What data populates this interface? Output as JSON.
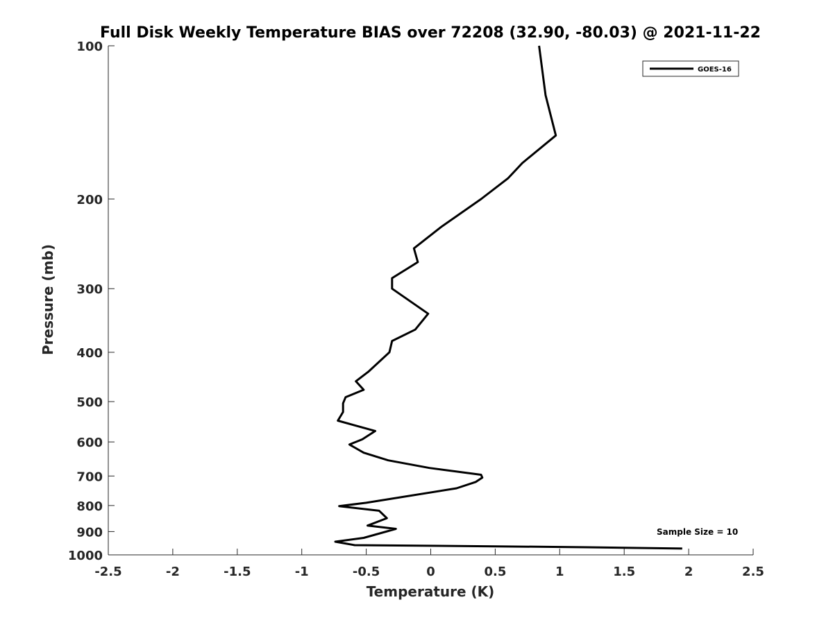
{
  "chart_data": {
    "type": "line",
    "title": "Full Disk Weekly Temperature BIAS over 72208 (32.90, -80.03) @ 2021-11-22",
    "xlabel": "Temperature (K)",
    "ylabel": "Pressure (mb)",
    "xlim": [
      -2.5,
      2.5
    ],
    "ylim": [
      1000,
      100
    ],
    "yscale": "log",
    "x_ticks": [
      "-2.5",
      "-2",
      "-1.5",
      "-1",
      "-0.5",
      "0",
      "0.5",
      "1",
      "1.5",
      "2",
      "2.5"
    ],
    "y_ticks": [
      "100",
      "200",
      "300",
      "400",
      "500",
      "600",
      "700",
      "800",
      "900",
      "1000"
    ],
    "grid": false,
    "legend": {
      "position": "top-right",
      "entries": [
        "GOES-16"
      ]
    },
    "annotation": "Sample Size = 10",
    "series": [
      {
        "name": "GOES-16",
        "color": "#000000",
        "points": [
          [
            0.84,
            100
          ],
          [
            0.89,
            125
          ],
          [
            0.97,
            150
          ],
          [
            0.71,
            170
          ],
          [
            0.6,
            182
          ],
          [
            0.39,
            200
          ],
          [
            0.08,
            227
          ],
          [
            -0.13,
            250
          ],
          [
            -0.1,
            266
          ],
          [
            -0.3,
            286
          ],
          [
            -0.3,
            300
          ],
          [
            -0.14,
            320
          ],
          [
            -0.02,
            336
          ],
          [
            -0.12,
            361
          ],
          [
            -0.3,
            380
          ],
          [
            -0.32,
            400
          ],
          [
            -0.48,
            436
          ],
          [
            -0.58,
            456
          ],
          [
            -0.52,
            474
          ],
          [
            -0.66,
            490
          ],
          [
            -0.68,
            504
          ],
          [
            -0.68,
            524
          ],
          [
            -0.72,
            545
          ],
          [
            -0.43,
            571
          ],
          [
            -0.53,
            593
          ],
          [
            -0.63,
            607
          ],
          [
            -0.52,
            630
          ],
          [
            -0.33,
            652
          ],
          [
            -0.01,
            675
          ],
          [
            0.39,
            696
          ],
          [
            0.4,
            705
          ],
          [
            0.35,
            719
          ],
          [
            0.2,
            740
          ],
          [
            -0.5,
            790
          ],
          [
            -0.71,
            802
          ],
          [
            -0.4,
            819
          ],
          [
            -0.34,
            847
          ],
          [
            -0.49,
            876
          ],
          [
            -0.27,
            889
          ],
          [
            -0.52,
            926
          ],
          [
            -0.74,
            942
          ],
          [
            -0.59,
            957
          ],
          [
            0.5,
            962
          ],
          [
            1.2,
            966
          ],
          [
            1.95,
            972
          ]
        ]
      }
    ]
  }
}
